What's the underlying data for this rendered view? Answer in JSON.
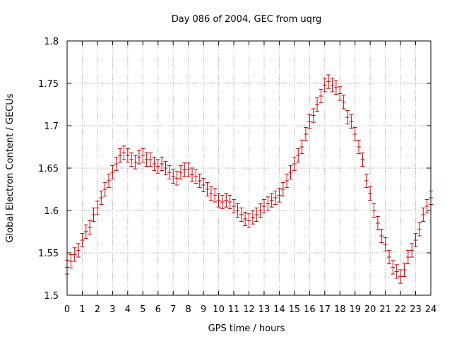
{
  "chart_data": {
    "type": "scatter",
    "title": "Day 086 of 2004, GEC from uqrg",
    "xlabel": "GPS time / hours",
    "ylabel": "Global Electron Content / GECUs",
    "xlim": [
      0,
      24
    ],
    "ylim": [
      1.5,
      1.8
    ],
    "x_ticks": [
      0,
      1,
      2,
      3,
      4,
      5,
      6,
      7,
      8,
      9,
      10,
      11,
      12,
      13,
      14,
      15,
      16,
      17,
      18,
      19,
      20,
      21,
      22,
      23,
      24
    ],
    "x_tick_labels": [
      "0",
      "1",
      "2",
      "3",
      "4",
      "5",
      "6",
      "7",
      "8",
      "9",
      "10",
      "11",
      "12",
      "13",
      "14",
      "15",
      "16",
      "17",
      "18",
      "19",
      "20",
      "21",
      "22",
      "23",
      "24"
    ],
    "y_ticks": [
      1.5,
      1.55,
      1.6,
      1.65,
      1.7,
      1.75,
      1.8
    ],
    "y_tick_labels": [
      "1.5",
      "1.55",
      "1.6",
      "1.65",
      "1.7",
      "1.75",
      "1.8"
    ],
    "grid": true,
    "legend": "none",
    "series_color": "#cc0000",
    "error_bar_half_width": 0.008,
    "series": [
      {
        "x": [
          0,
          0.25,
          0.5,
          0.75,
          1,
          1.25,
          1.5,
          1.75,
          2,
          2.25,
          2.5,
          2.75,
          3,
          3.25,
          3.5,
          3.75,
          4,
          4.25,
          4.5,
          4.75,
          5,
          5.25,
          5.5,
          5.75,
          6,
          6.25,
          6.5,
          6.75,
          7,
          7.25,
          7.5,
          7.75,
          8,
          8.25,
          8.5,
          8.75,
          9,
          9.25,
          9.5,
          9.75,
          10,
          10.25,
          10.5,
          10.75,
          11,
          11.25,
          11.5,
          11.75,
          12,
          12.25,
          12.5,
          12.75,
          13,
          13.25,
          13.5,
          13.75,
          14,
          14.25,
          14.5,
          14.75,
          15,
          15.25,
          15.5,
          15.75,
          16,
          16.25,
          16.5,
          16.75,
          17,
          17.25,
          17.5,
          17.75,
          18,
          18.25,
          18.5,
          18.75,
          19,
          19.25,
          19.5,
          19.75,
          20,
          20.25,
          20.5,
          20.75,
          21,
          21.25,
          21.5,
          21.75,
          22,
          22.25,
          22.5,
          22.75,
          23,
          23.25,
          23.5,
          23.75,
          24
        ],
        "y": [
          1.533,
          1.54,
          1.548,
          1.553,
          1.565,
          1.575,
          1.58,
          1.595,
          1.603,
          1.615,
          1.625,
          1.635,
          1.645,
          1.655,
          1.665,
          1.668,
          1.665,
          1.66,
          1.657,
          1.663,
          1.665,
          1.66,
          1.66,
          1.655,
          1.652,
          1.655,
          1.65,
          1.645,
          1.64,
          1.638,
          1.645,
          1.648,
          1.648,
          1.642,
          1.64,
          1.635,
          1.63,
          1.625,
          1.62,
          1.618,
          1.612,
          1.61,
          1.612,
          1.61,
          1.605,
          1.6,
          1.595,
          1.59,
          1.588,
          1.592,
          1.595,
          1.6,
          1.605,
          1.608,
          1.612,
          1.615,
          1.618,
          1.625,
          1.635,
          1.645,
          1.655,
          1.665,
          1.675,
          1.69,
          1.705,
          1.712,
          1.725,
          1.735,
          1.748,
          1.752,
          1.748,
          1.745,
          1.738,
          1.728,
          1.71,
          1.705,
          1.69,
          1.675,
          1.66,
          1.635,
          1.62,
          1.6,
          1.585,
          1.57,
          1.56,
          1.545,
          1.533,
          1.528,
          1.522,
          1.53,
          1.545,
          1.553,
          1.565,
          1.578,
          1.595,
          1.605,
          1.615
        ]
      }
    ]
  }
}
